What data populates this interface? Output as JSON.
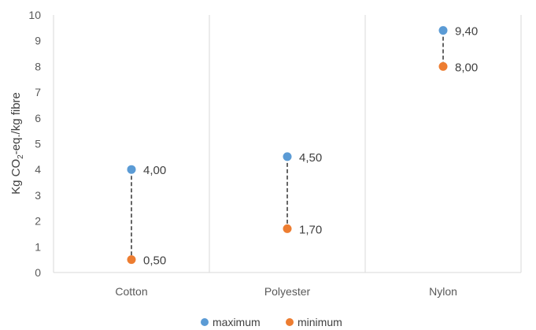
{
  "chart_data": {
    "type": "scatter",
    "categories": [
      "Cotton",
      "Polyester",
      "Nylon"
    ],
    "series": [
      {
        "name": "maximum",
        "values": [
          4.0,
          4.5,
          9.4
        ],
        "labels": [
          "4,00",
          "4,50",
          "9,40"
        ],
        "color": "#5B9BD5"
      },
      {
        "name": "minimum",
        "values": [
          0.5,
          1.7,
          8.0
        ],
        "labels": [
          "0,50",
          "1,70",
          "8,00"
        ],
        "color": "#ED7D31"
      }
    ],
    "ylabel": "Kg CO2-eq./kg fibre",
    "ylabel_parts": {
      "pre": "Kg CO",
      "sub": "2",
      "post": "-eq./kg fibre"
    },
    "ylim": [
      0,
      10
    ],
    "yticks": [
      "0",
      "1",
      "2",
      "3",
      "4",
      "5",
      "6",
      "7",
      "8",
      "9",
      "10"
    ],
    "grid": "vertical",
    "connector": "dashed",
    "legend": "bottom"
  }
}
